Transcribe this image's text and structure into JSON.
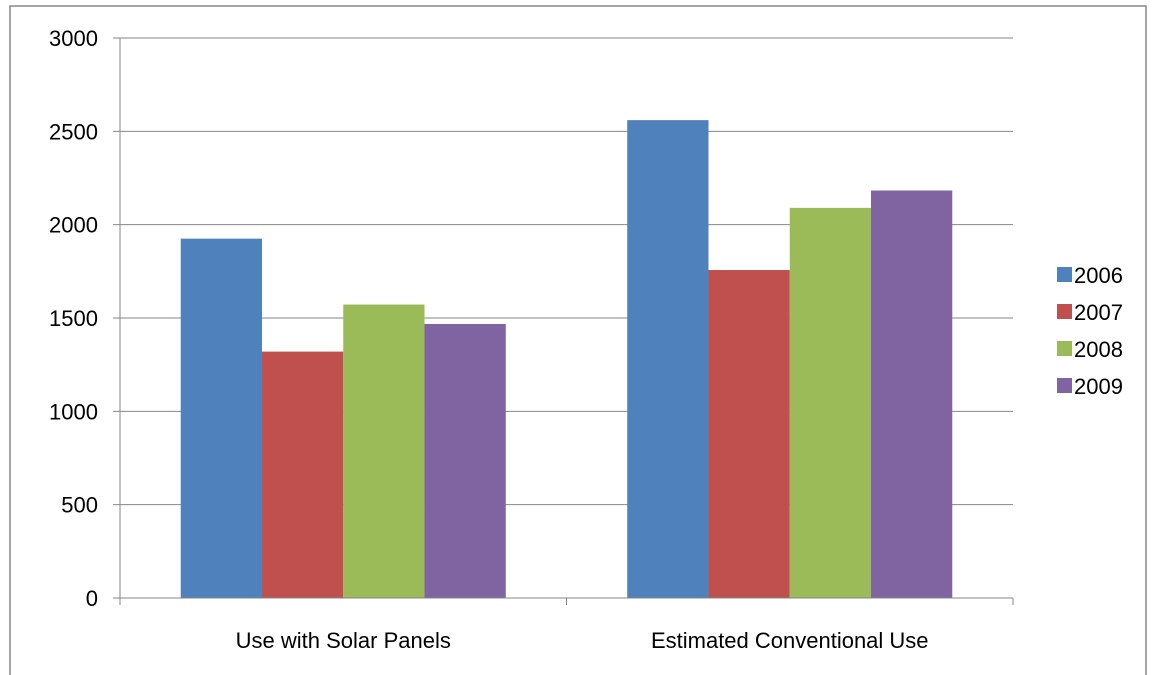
{
  "chart_data": {
    "type": "bar",
    "title": "",
    "xlabel": "",
    "ylabel": "",
    "categories": [
      "Use with Solar Panels",
      "Estimated Conventional Use"
    ],
    "series": [
      {
        "name": "2006",
        "color": "#4F81BD",
        "values": [
          1925,
          2560
        ]
      },
      {
        "name": "2007",
        "color": "#C0504D",
        "values": [
          1320,
          1757
        ]
      },
      {
        "name": "2008",
        "color": "#9BBB59",
        "values": [
          1572,
          2090
        ]
      },
      {
        "name": "2009",
        "color": "#8064A2",
        "values": [
          1468,
          2183
        ]
      }
    ],
    "ylim": [
      0,
      3000
    ],
    "yticks": [
      0,
      500,
      1000,
      1500,
      2000,
      2500,
      3000
    ],
    "grid": true,
    "legend_position": "right"
  }
}
